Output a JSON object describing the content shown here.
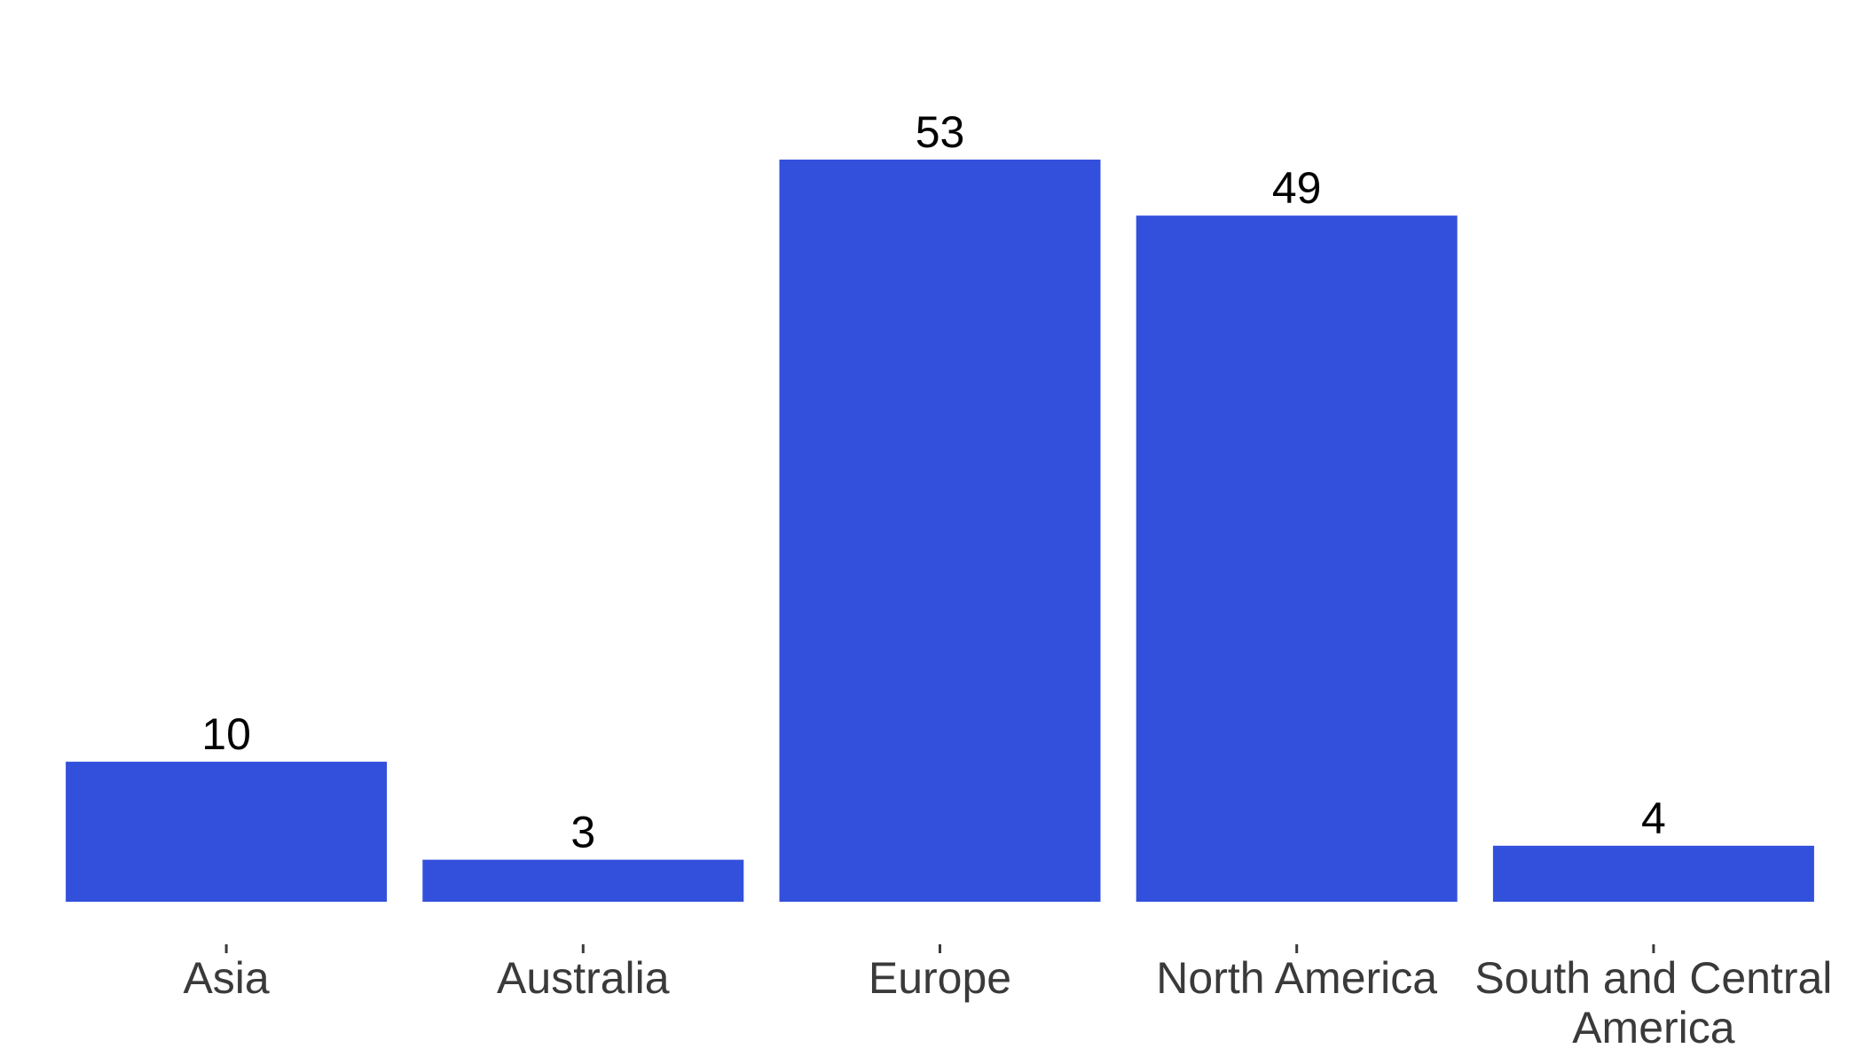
{
  "chart_data": {
    "type": "bar",
    "title": "",
    "xlabel": "",
    "ylabel": "",
    "categories": [
      "Asia",
      "Australia",
      "Europe",
      "North America",
      "South and Central America"
    ],
    "category_lines": [
      [
        "Asia"
      ],
      [
        "Australia"
      ],
      [
        "Europe"
      ],
      [
        "North America"
      ],
      [
        "South and Central",
        "America"
      ]
    ],
    "values": [
      10,
      3,
      53,
      49,
      4
    ],
    "data_labels": [
      "10",
      "3",
      "53",
      "49",
      "4"
    ],
    "ylim": [
      0,
      53
    ],
    "grid": false,
    "legend": "none",
    "bar_color": "#3350dc"
  }
}
